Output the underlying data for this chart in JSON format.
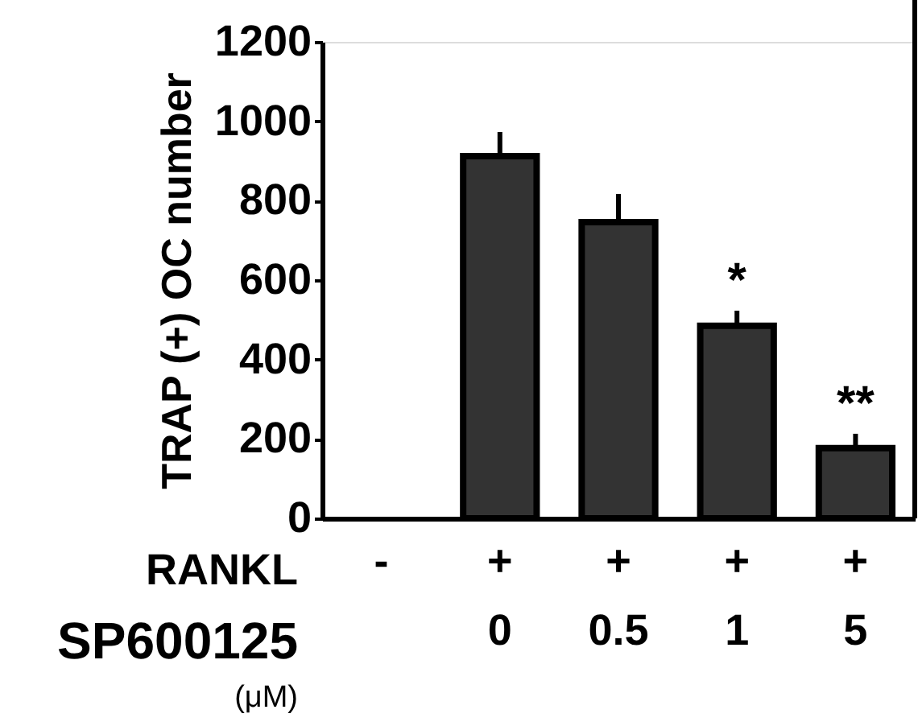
{
  "chart_data": {
    "type": "bar",
    "ylabel": "TRAP (+) OC number",
    "categories": [
      "-",
      "+\n0",
      "+\n0.5",
      "+\n1",
      "+\n5"
    ],
    "values": [
      0,
      912,
      746,
      485,
      177
    ],
    "errors": [
      null,
      61,
      71,
      38,
      36
    ],
    "color": "#333333",
    "ylim": [
      0,
      1200
    ],
    "yticks": [
      0,
      200,
      400,
      600,
      800,
      1000,
      1200
    ],
    "grid": false,
    "annotations": [
      {
        "text": "*",
        "x": "+\n1",
        "y": 523
      },
      {
        "text": "**",
        "x": "+\n5",
        "y": 213
      },
      "RANKL",
      "SP600125",
      "(μM)"
    ]
  }
}
